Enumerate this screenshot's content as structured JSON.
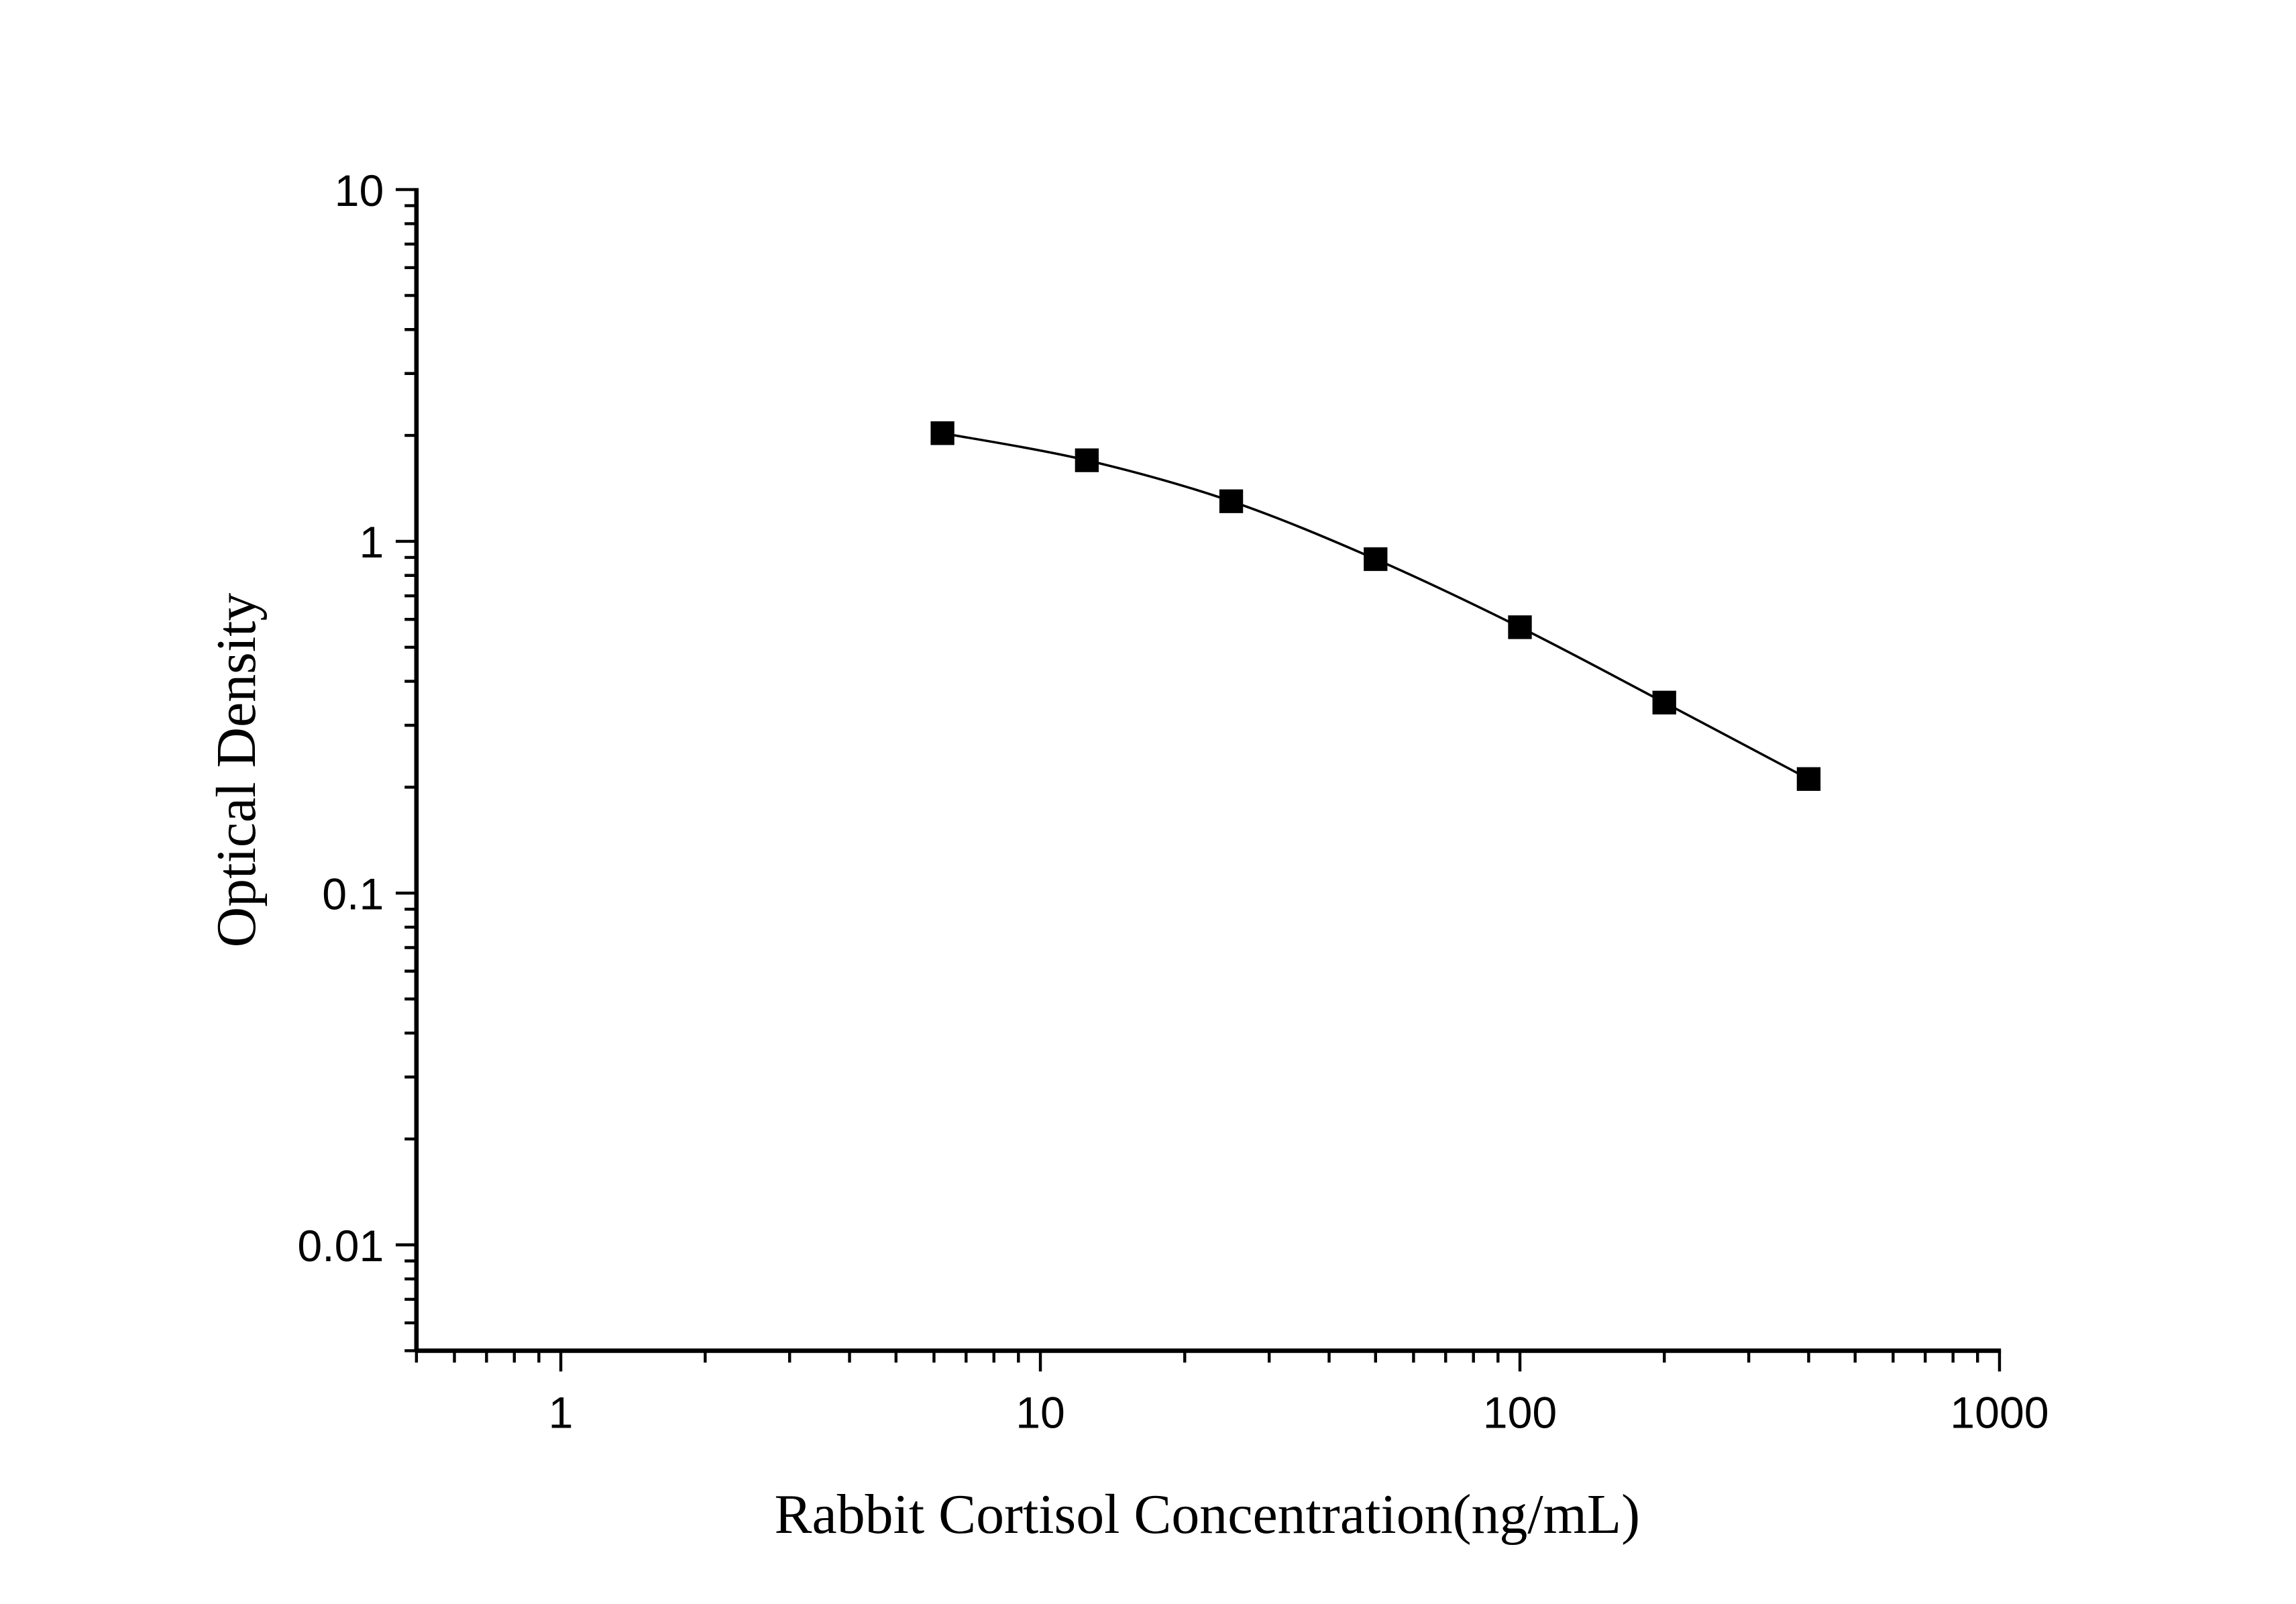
{
  "chart_data": {
    "type": "line",
    "title": "",
    "xlabel": "Rabbit Cortisol Concentration(ng/mL)",
    "ylabel": "Optical Density",
    "x_scale": "log",
    "y_scale": "log",
    "xlim": [
      0.5,
      1000
    ],
    "ylim": [
      0.005,
      10
    ],
    "x_ticks": [
      1,
      10,
      100,
      1000
    ],
    "x_tick_labels": [
      "1",
      "10",
      "100",
      "1000"
    ],
    "y_ticks": [
      0.01,
      0.1,
      1,
      10
    ],
    "y_tick_labels": [
      "0.01",
      "0.1",
      "1",
      "10"
    ],
    "grid": false,
    "marker": "square",
    "color": "#000000",
    "series": [
      {
        "x": [
          6.25,
          12.5,
          25,
          50,
          100,
          200,
          400
        ],
        "y": [
          2.03,
          1.7,
          1.3,
          0.89,
          0.57,
          0.348,
          0.211
        ]
      }
    ]
  }
}
